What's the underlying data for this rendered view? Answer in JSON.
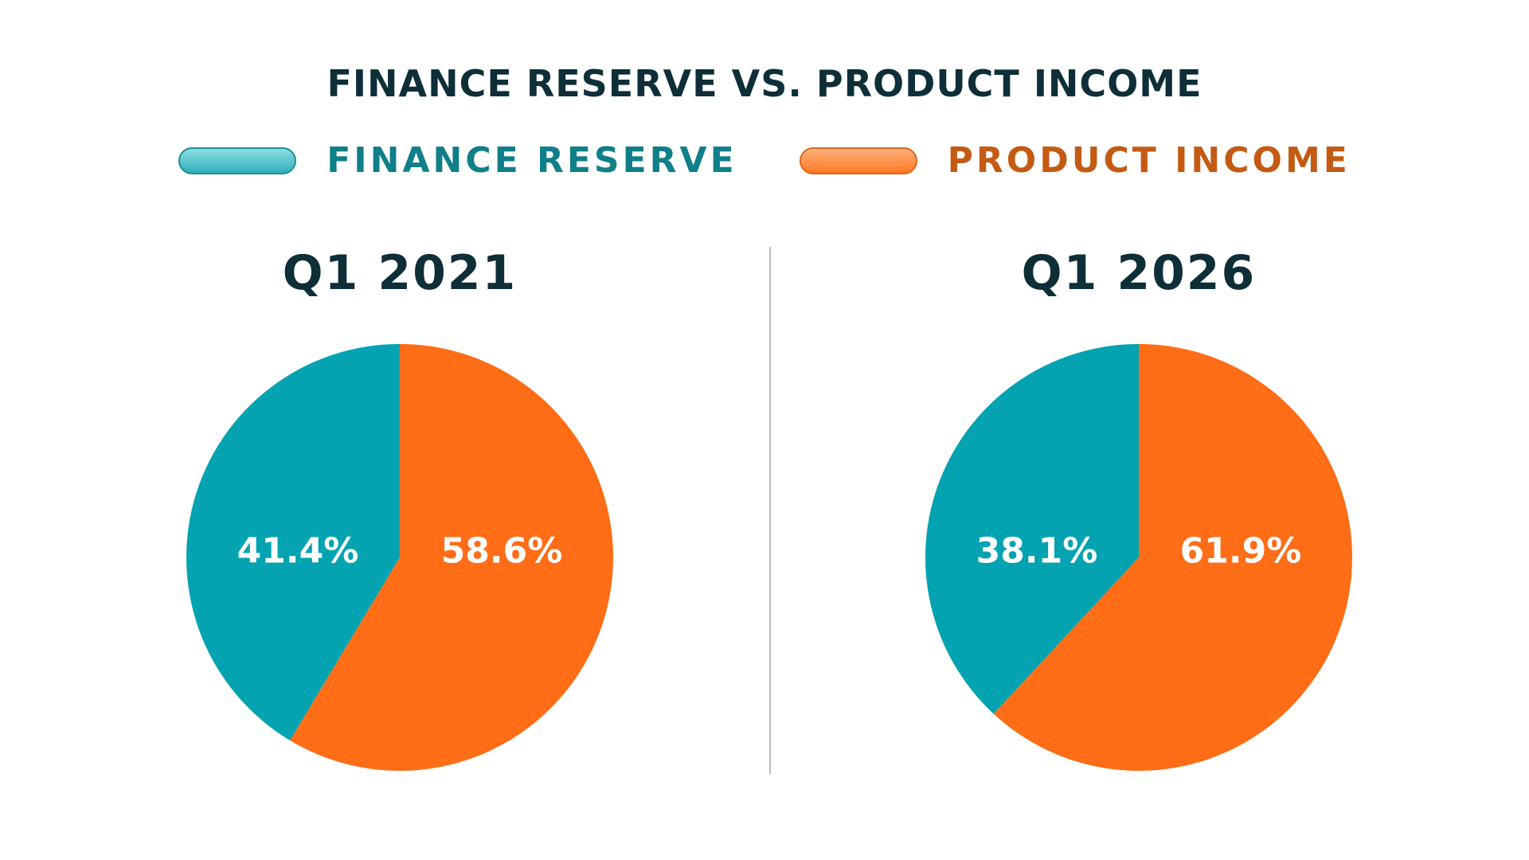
{
  "title": "FINANCE RESERVE VS. PRODUCT INCOME",
  "legend": [
    {
      "label": "FINANCE RESERVE",
      "color": "#03a3b1"
    },
    {
      "label": "PRODUCT INCOME",
      "color": "#ff6d17"
    }
  ],
  "chart_data": [
    {
      "type": "pie",
      "title": "Q1 2021",
      "categories": [
        "FINANCE RESERVE",
        "PRODUCT INCOME"
      ],
      "values": [
        41.4,
        58.6
      ],
      "value_labels": [
        "41.4%",
        "58.6%"
      ],
      "colors": [
        "#03a3b1",
        "#ff6d17"
      ],
      "start_angle": "12 o'clock",
      "direction": "counterclockwise for FINANCE RESERVE, clockwise for PRODUCT INCOME",
      "legend_position": "top"
    },
    {
      "type": "pie",
      "title": "Q1 2026",
      "categories": [
        "FINANCE RESERVE",
        "PRODUCT INCOME"
      ],
      "values": [
        38.1,
        61.9
      ],
      "value_labels": [
        "38.1%",
        "61.9%"
      ],
      "colors": [
        "#03a3b1",
        "#ff6d17"
      ],
      "start_angle": "12 o'clock",
      "direction": "counterclockwise for FINANCE RESERVE, clockwise for PRODUCT INCOME",
      "legend_position": "top"
    }
  ]
}
